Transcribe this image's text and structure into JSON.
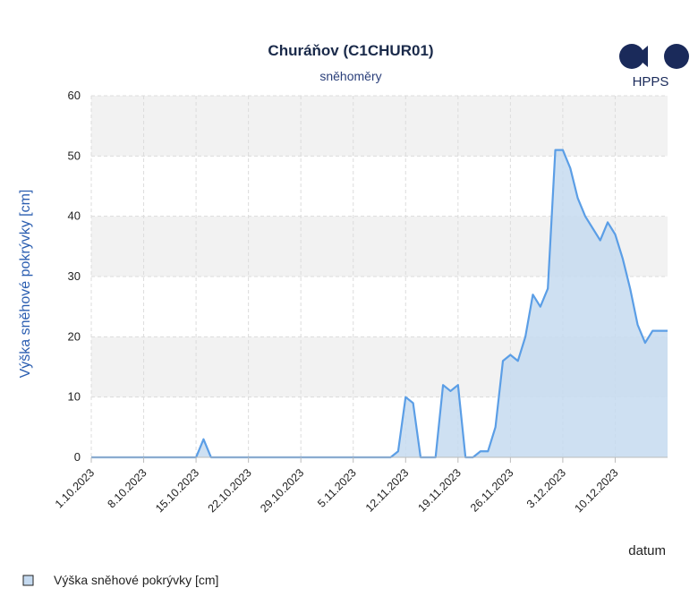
{
  "logo": {
    "text": "HPPS"
  },
  "legend": {
    "label": "Výška sněhové pokrývky [cm]"
  },
  "chart_data": {
    "type": "area",
    "title": "Churáňov (C1CHUR01)",
    "subtitle": "sněhoměry",
    "xlabel": "datum",
    "ylabel": "Výška sněhové pokrývky [cm]",
    "ylim": [
      0,
      60
    ],
    "yticks": [
      0,
      10,
      20,
      30,
      40,
      50,
      60
    ],
    "xlim": [
      "2023-10-01",
      "2023-12-17"
    ],
    "xticks": [
      "1.10.2023",
      "8.10.2023",
      "15.10.2023",
      "22.10.2023",
      "29.10.2023",
      "5.11.2023",
      "12.11.2023",
      "19.11.2023",
      "26.11.2023",
      "3.12.2023",
      "10.12.2023"
    ],
    "grid": true,
    "legend_position": "bottom-left",
    "colors": {
      "line": "#5b9ee6",
      "fill": "#c5daf0",
      "band": "#f2f2f2",
      "axis_title": "#2a5db0"
    },
    "series": [
      {
        "name": "Výška sněhové pokrývky [cm]",
        "x": [
          "2023-10-01",
          "2023-10-15",
          "2023-10-16",
          "2023-10-17",
          "2023-11-10",
          "2023-11-11",
          "2023-11-12",
          "2023-11-13",
          "2023-11-14",
          "2023-11-15",
          "2023-11-16",
          "2023-11-17",
          "2023-11-18",
          "2023-11-19",
          "2023-11-20",
          "2023-11-21",
          "2023-11-22",
          "2023-11-23",
          "2023-11-24",
          "2023-11-25",
          "2023-11-26",
          "2023-11-27",
          "2023-11-28",
          "2023-11-29",
          "2023-11-30",
          "2023-12-01",
          "2023-12-02",
          "2023-12-03",
          "2023-12-04",
          "2023-12-05",
          "2023-12-06",
          "2023-12-07",
          "2023-12-08",
          "2023-12-09",
          "2023-12-10",
          "2023-12-11",
          "2023-12-12",
          "2023-12-13",
          "2023-12-14",
          "2023-12-15",
          "2023-12-16",
          "2023-12-17"
        ],
        "y": [
          0,
          0,
          3,
          0,
          0,
          1,
          10,
          9,
          0,
          0,
          0,
          12,
          11,
          12,
          0,
          0,
          1,
          1,
          5,
          16,
          17,
          16,
          20,
          27,
          25,
          28,
          51,
          51,
          48,
          43,
          40,
          38,
          36,
          39,
          37,
          33,
          28,
          22,
          19,
          21,
          21,
          21
        ]
      }
    ]
  }
}
